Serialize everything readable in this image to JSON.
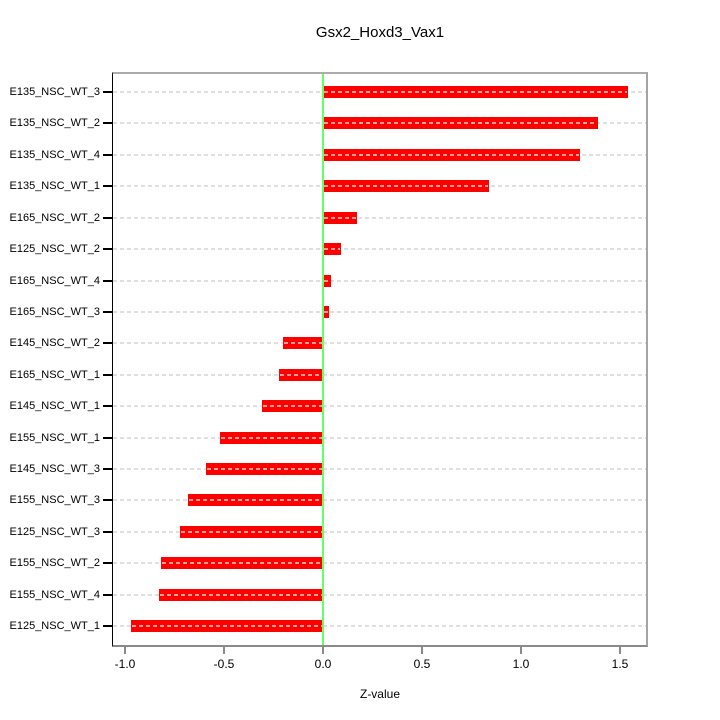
{
  "chart_data": {
    "type": "bar",
    "orientation": "horizontal",
    "title": "Gsx2_Hoxd3_Vax1",
    "xlabel": "Z-value",
    "categories": [
      "E135_NSC_WT_3",
      "E135_NSC_WT_2",
      "E135_NSC_WT_4",
      "E135_NSC_WT_1",
      "E165_NSC_WT_2",
      "E125_NSC_WT_2",
      "E165_NSC_WT_4",
      "E165_NSC_WT_3",
      "E145_NSC_WT_2",
      "E165_NSC_WT_1",
      "E145_NSC_WT_1",
      "E155_NSC_WT_1",
      "E145_NSC_WT_3",
      "E155_NSC_WT_3",
      "E125_NSC_WT_3",
      "E155_NSC_WT_2",
      "E155_NSC_WT_4",
      "E125_NSC_WT_1"
    ],
    "values": [
      1.54,
      1.39,
      1.3,
      0.84,
      0.17,
      0.09,
      0.04,
      0.03,
      -0.2,
      -0.22,
      -0.31,
      -0.52,
      -0.59,
      -0.68,
      -0.72,
      -0.82,
      -0.83,
      -0.97
    ],
    "x_tick_values": [
      -1.0,
      -0.5,
      0.0,
      0.5,
      1.0,
      1.5
    ],
    "x_tick_labels": [
      "-1.0",
      "-0.5",
      "0.0",
      "0.5",
      "1.0",
      "1.5"
    ],
    "xlim": [
      -1.07,
      1.64
    ],
    "zero_reference_line": 0.0,
    "grid": "dashed horizontal line per category",
    "legend": null,
    "colors": {
      "bar": "#FF0000",
      "zero_line": "#66FF66",
      "gridline": "#DFDFDF",
      "box_border": "#A4A4A4",
      "bottom_axis": "#8A8A8A",
      "text": "#000000",
      "background": "#FFFFFF"
    }
  }
}
